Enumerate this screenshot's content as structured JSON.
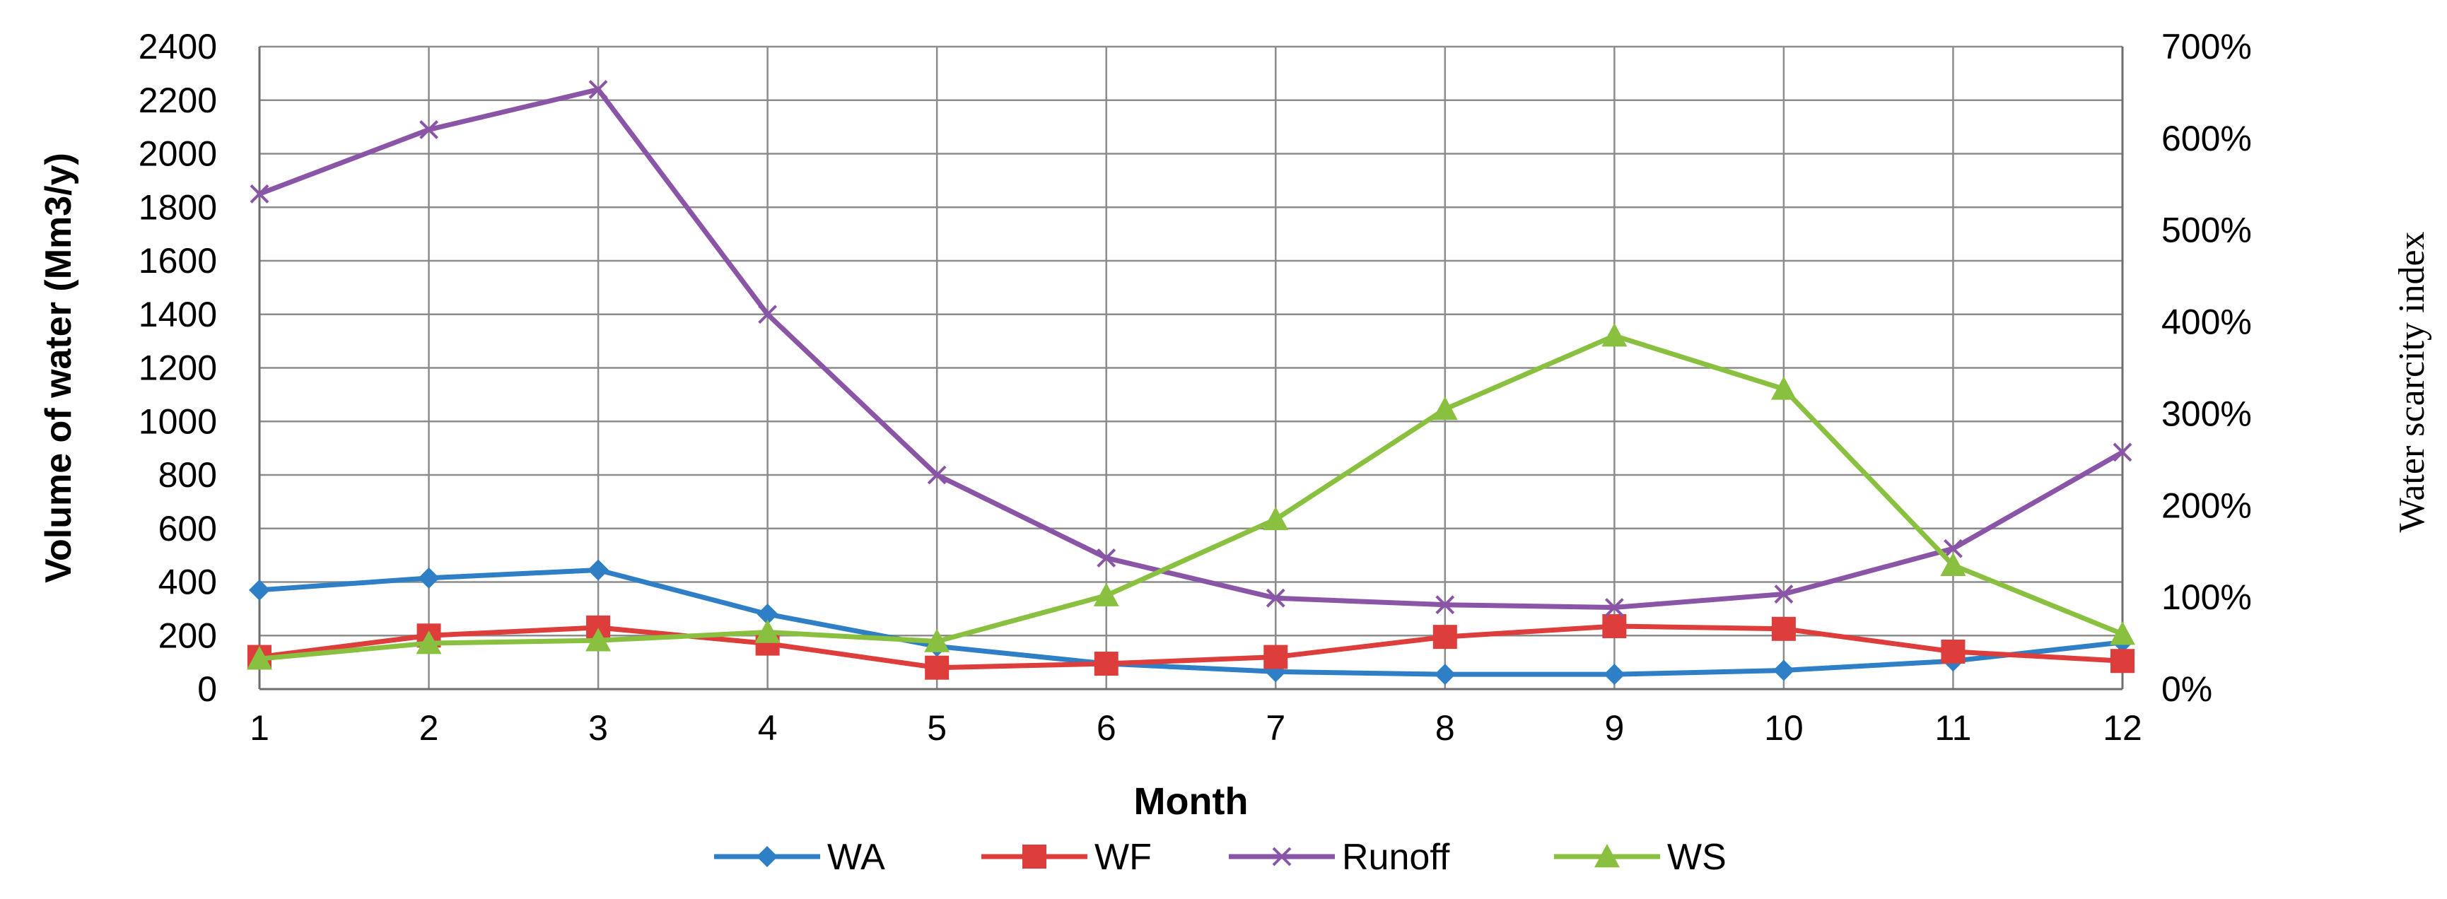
{
  "chart_data": {
    "type": "line",
    "xlabel": "Month",
    "ylabel": "Volume of water (Mm3/y)",
    "y2label": "Water scarcity index",
    "x": [
      1,
      2,
      3,
      4,
      5,
      6,
      7,
      8,
      9,
      10,
      11,
      12
    ],
    "xticks": [
      "1",
      "2",
      "3",
      "4",
      "5",
      "6",
      "7",
      "8",
      "9",
      "10",
      "11",
      "12"
    ],
    "ylim": [
      0,
      2400
    ],
    "yticks": [
      "0",
      "200",
      "400",
      "600",
      "800",
      "1000",
      "1200",
      "1400",
      "1600",
      "1800",
      "2000",
      "2200",
      "2400"
    ],
    "y2lim": [
      0,
      7
    ],
    "y2ticks": [
      "0%",
      "100%",
      "200%",
      "300%",
      "400%",
      "500%",
      "600%",
      "700%"
    ],
    "grid": true,
    "legend_position": "bottom",
    "series": [
      {
        "name": "WA",
        "axis": "left",
        "color": "#2e7fc5",
        "marker": "diamond",
        "values": [
          370,
          415,
          445,
          280,
          160,
          95,
          65,
          55,
          55,
          70,
          105,
          175
        ]
      },
      {
        "name": "WF",
        "axis": "left",
        "color": "#dd3e3c",
        "marker": "square",
        "values": [
          120,
          200,
          230,
          170,
          80,
          95,
          120,
          195,
          235,
          225,
          140,
          105
        ]
      },
      {
        "name": "Runoff",
        "axis": "left",
        "color": "#8a55a7",
        "marker": "x",
        "values": [
          1850,
          2090,
          2240,
          1400,
          800,
          490,
          340,
          315,
          305,
          355,
          525,
          885
        ]
      },
      {
        "name": "WS",
        "axis": "right",
        "color": "#8ac040",
        "marker": "triangle",
        "values": [
          0.33,
          0.5,
          0.53,
          0.62,
          0.52,
          1.02,
          1.85,
          3.05,
          3.85,
          3.27,
          1.35,
          0.6
        ]
      }
    ]
  }
}
